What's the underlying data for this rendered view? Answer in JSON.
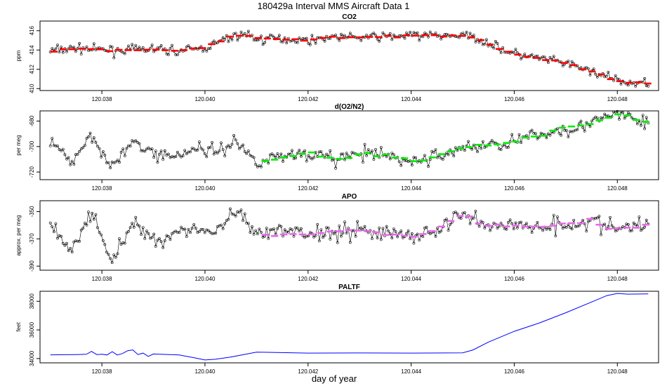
{
  "figure": {
    "title": "180429a   Interval MMS Aircraft Data 1",
    "xlabel": "day of year"
  },
  "colors": {
    "co2": "#ff0000",
    "o2n2": "#00ee00",
    "apo": "#ee66ee",
    "paltf": "#0000ff",
    "points": "#000000"
  },
  "chart_data": [
    {
      "type": "scatter",
      "title": "CO2",
      "ylabel": "ppm",
      "xlim": [
        120.0368,
        120.0488
      ],
      "ylim": [
        409.8,
        417.0
      ],
      "xticks": [
        120.038,
        120.04,
        120.042,
        120.044,
        120.046,
        120.048
      ],
      "xtick_labels": [
        "120.038",
        "120.040",
        "120.042",
        "120.044",
        "120.046",
        "120.048"
      ],
      "yticks": [
        410,
        412,
        414,
        416
      ],
      "ytick_labels": [
        "410",
        "412",
        "414",
        "416"
      ],
      "x_range": [
        120.037,
        120.0486
      ],
      "raw_series": {
        "name": "",
        "x": [
          120.037,
          120.0375,
          120.038,
          120.0385,
          120.039,
          120.0395,
          120.04,
          120.0405,
          120.0408,
          120.041,
          120.0415,
          120.042,
          120.0425,
          120.043,
          120.0435,
          120.044,
          120.0445,
          120.045,
          120.0453,
          120.0458,
          120.046,
          120.0465,
          120.047,
          120.0475,
          120.048,
          120.0483,
          120.0486
        ],
        "y": [
          413.9,
          414.2,
          414.0,
          414.0,
          414.1,
          413.9,
          414.2,
          415.3,
          415.7,
          415.1,
          415.2,
          415.0,
          415.4,
          415.3,
          415.4,
          415.5,
          415.5,
          415.5,
          415.2,
          414.0,
          413.6,
          413.1,
          412.6,
          411.8,
          410.8,
          410.5,
          410.6
        ]
      },
      "fit_series": {
        "name": "",
        "x": [
          120.037,
          120.0375,
          120.038,
          120.0385,
          120.039,
          120.0395,
          120.04,
          120.0405,
          120.0408,
          120.041,
          120.0415,
          120.042,
          120.0425,
          120.043,
          120.0435,
          120.044,
          120.0445,
          120.045,
          120.0453,
          120.0458,
          120.046,
          120.0465,
          120.047,
          120.0475,
          120.048,
          120.0483,
          120.0486
        ],
        "y": [
          413.9,
          414.2,
          414.0,
          414.0,
          414.1,
          413.9,
          414.2,
          415.3,
          415.7,
          415.1,
          415.2,
          415.0,
          415.4,
          415.3,
          415.4,
          415.5,
          415.5,
          415.5,
          415.2,
          414.0,
          413.6,
          413.1,
          412.6,
          411.8,
          410.8,
          410.5,
          410.6
        ]
      }
    },
    {
      "type": "scatter",
      "title": "d(O2/N2)",
      "ylabel": "per meg",
      "xlim": [
        120.0368,
        120.0488
      ],
      "ylim": [
        -726,
        -672
      ],
      "xticks": [
        120.038,
        120.04,
        120.042,
        120.044,
        120.046,
        120.048
      ],
      "xtick_labels": [
        "120.038",
        "120.040",
        "120.042",
        "120.044",
        "120.046",
        "120.048"
      ],
      "yticks": [
        -720,
        -700,
        -680
      ],
      "ytick_labels": [
        "-720",
        "-700",
        "-680"
      ],
      "raw_series": {
        "name": "",
        "x": [
          120.037,
          120.0374,
          120.0378,
          120.0382,
          120.0386,
          120.039,
          120.0394,
          120.0398,
          120.0402,
          120.0406,
          120.041,
          120.0415,
          120.042,
          120.0425,
          120.043,
          120.0435,
          120.044,
          120.0445,
          120.045,
          120.0455,
          120.046,
          120.0465,
          120.047,
          120.0475,
          120.048,
          120.0485
        ],
        "y": [
          -698,
          -712,
          -690,
          -716,
          -697,
          -705,
          -708,
          -701,
          -704,
          -696,
          -712,
          -707,
          -705,
          -710,
          -706,
          -707,
          -712,
          -708,
          -701,
          -699,
          -696,
          -691,
          -686,
          -682,
          -674,
          -681
        ]
      },
      "fit_series": {
        "name": "",
        "x": [
          120.0411,
          120.042,
          120.0425,
          120.043,
          120.0435,
          120.044,
          120.0445,
          120.045,
          120.0455,
          120.046,
          120.0465,
          120.047,
          120.0475,
          120.048,
          120.0486
        ],
        "y": [
          -712,
          -705,
          -710,
          -706,
          -707,
          -712,
          -708,
          -701,
          -699,
          -696,
          -691,
          -686,
          -682,
          -674,
          -681
        ]
      }
    },
    {
      "type": "scatter",
      "title": "APO",
      "ylabel": "approx. per meg",
      "xlim": [
        120.0368,
        120.0488
      ],
      "ylim": [
        -393,
        -342
      ],
      "xticks": [
        120.038,
        120.04,
        120.042,
        120.044,
        120.046,
        120.048
      ],
      "xtick_labels": [
        "120.038",
        "120.040",
        "120.042",
        "120.044",
        "120.046",
        "120.048"
      ],
      "yticks": [
        -390,
        -370,
        -350
      ],
      "ytick_labels": [
        "-390",
        "-370",
        "-350"
      ],
      "raw_series": {
        "name": "",
        "x": [
          120.037,
          120.0374,
          120.0378,
          120.0382,
          120.0386,
          120.039,
          120.0394,
          120.0398,
          120.0402,
          120.0406,
          120.041,
          120.0415,
          120.042,
          120.0425,
          120.043,
          120.0435,
          120.044,
          120.0445,
          120.045,
          120.0455,
          120.046,
          120.0465,
          120.047,
          120.0475,
          120.048,
          120.0485
        ],
        "y": [
          -360,
          -378,
          -352,
          -385,
          -358,
          -372,
          -366,
          -362,
          -366,
          -350,
          -368,
          -364,
          -366,
          -365,
          -363,
          -366,
          -368,
          -364,
          -352,
          -360,
          -360,
          -361,
          -359,
          -357,
          -363,
          -360
        ]
      },
      "fit_series": {
        "name": "",
        "x": [
          120.0411,
          120.042,
          120.0425,
          120.043,
          120.0435,
          120.044,
          120.0445,
          120.045,
          120.0455,
          120.046,
          120.0465,
          120.047,
          120.0475,
          120.048,
          120.0486
        ],
        "y": [
          -368,
          -366,
          -365,
          -363,
          -366,
          -368,
          -364,
          -352,
          -360,
          -360,
          -361,
          -359,
          -357,
          -363,
          -360
        ]
      }
    },
    {
      "type": "line",
      "title": "PALTF",
      "ylabel": "feet",
      "xlim": [
        120.0368,
        120.0488
      ],
      "ylim": [
        33700,
        38700
      ],
      "xticks": [
        120.038,
        120.04,
        120.042,
        120.044,
        120.046,
        120.048
      ],
      "xtick_labels": [
        "120.038",
        "120.040",
        "120.042",
        "120.044",
        "120.046",
        "120.048"
      ],
      "yticks": [
        34000,
        36000,
        38000
      ],
      "ytick_labels": [
        "34000",
        "36000",
        "38000"
      ],
      "series": [
        {
          "name": "",
          "x": [
            120.037,
            120.0375,
            120.0377,
            120.0378,
            120.0379,
            120.038,
            120.0381,
            120.0382,
            120.0383,
            120.0384,
            120.0385,
            120.0386,
            120.0387,
            120.0388,
            120.0389,
            120.039,
            120.0395,
            120.0398,
            120.04,
            120.0402,
            120.0405,
            120.041,
            120.042,
            120.043,
            120.044,
            120.045,
            120.0452,
            120.0455,
            120.046,
            120.0465,
            120.047,
            120.0475,
            120.0478,
            120.048,
            120.0482,
            120.0486
          ],
          "y": [
            34260,
            34280,
            34300,
            34500,
            34280,
            34300,
            34250,
            34480,
            34250,
            34350,
            34550,
            34600,
            34280,
            34380,
            34150,
            34320,
            34250,
            34050,
            33900,
            33950,
            34100,
            34450,
            34380,
            34390,
            34380,
            34400,
            34600,
            35150,
            35900,
            36500,
            37200,
            37950,
            38400,
            38550,
            38500,
            38520
          ]
        }
      ]
    }
  ]
}
